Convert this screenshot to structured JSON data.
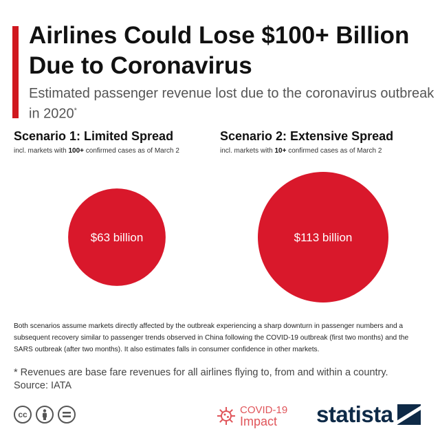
{
  "header": {
    "title": "Airlines Could Lose $100+ Billion Due to Coronavirus",
    "subtitle": "Estimated passenger revenue lost due to the coronavirus outbreak in 2020",
    "subtitle_marker": "*"
  },
  "scenarios": [
    {
      "title": "Scenario 1: Limited Spread",
      "note_prefix": "incl. markets with ",
      "note_bold": "100+",
      "note_suffix": " confirmed cases as of March 2"
    },
    {
      "title": "Scenario 2: Extensive Spread",
      "note_prefix": "incl. markets with ",
      "note_bold": "10+",
      "note_suffix": " confirmed cases as of March 2"
    }
  ],
  "chart_data": {
    "type": "bubble",
    "unit": "billion USD",
    "categories": [
      "Scenario 1: Limited Spread",
      "Scenario 2: Extensive Spread"
    ],
    "values": [
      63,
      113
    ],
    "labels": [
      "$63 billion",
      "$113 billion"
    ],
    "color": "#d9182b"
  },
  "notes": {
    "methodology": "Both scenarios assume markets directly affected by the outbreak experiencing a sharp downturn in passenger numbers and a subsequent recovery similar to passenger trends observed in China following the COVID-19 outbreak (first two months) and the SARS outbreak (after two months). It also estimates falls in consumer confidence in other markets.",
    "footnote": "* Revenues are base fare revenues for all airlines flying to, from and within a country.",
    "source": "Source: IATA"
  },
  "footer": {
    "license_icons": [
      "cc-icon",
      "attribution-icon",
      "no-derivatives-icon"
    ],
    "covid_line1": "COVID-19",
    "covid_line2": "Impact",
    "brand": "statista"
  },
  "colors": {
    "accent": "#d0181f",
    "bubble": "#d9182b",
    "brand": "#0e2a47"
  }
}
